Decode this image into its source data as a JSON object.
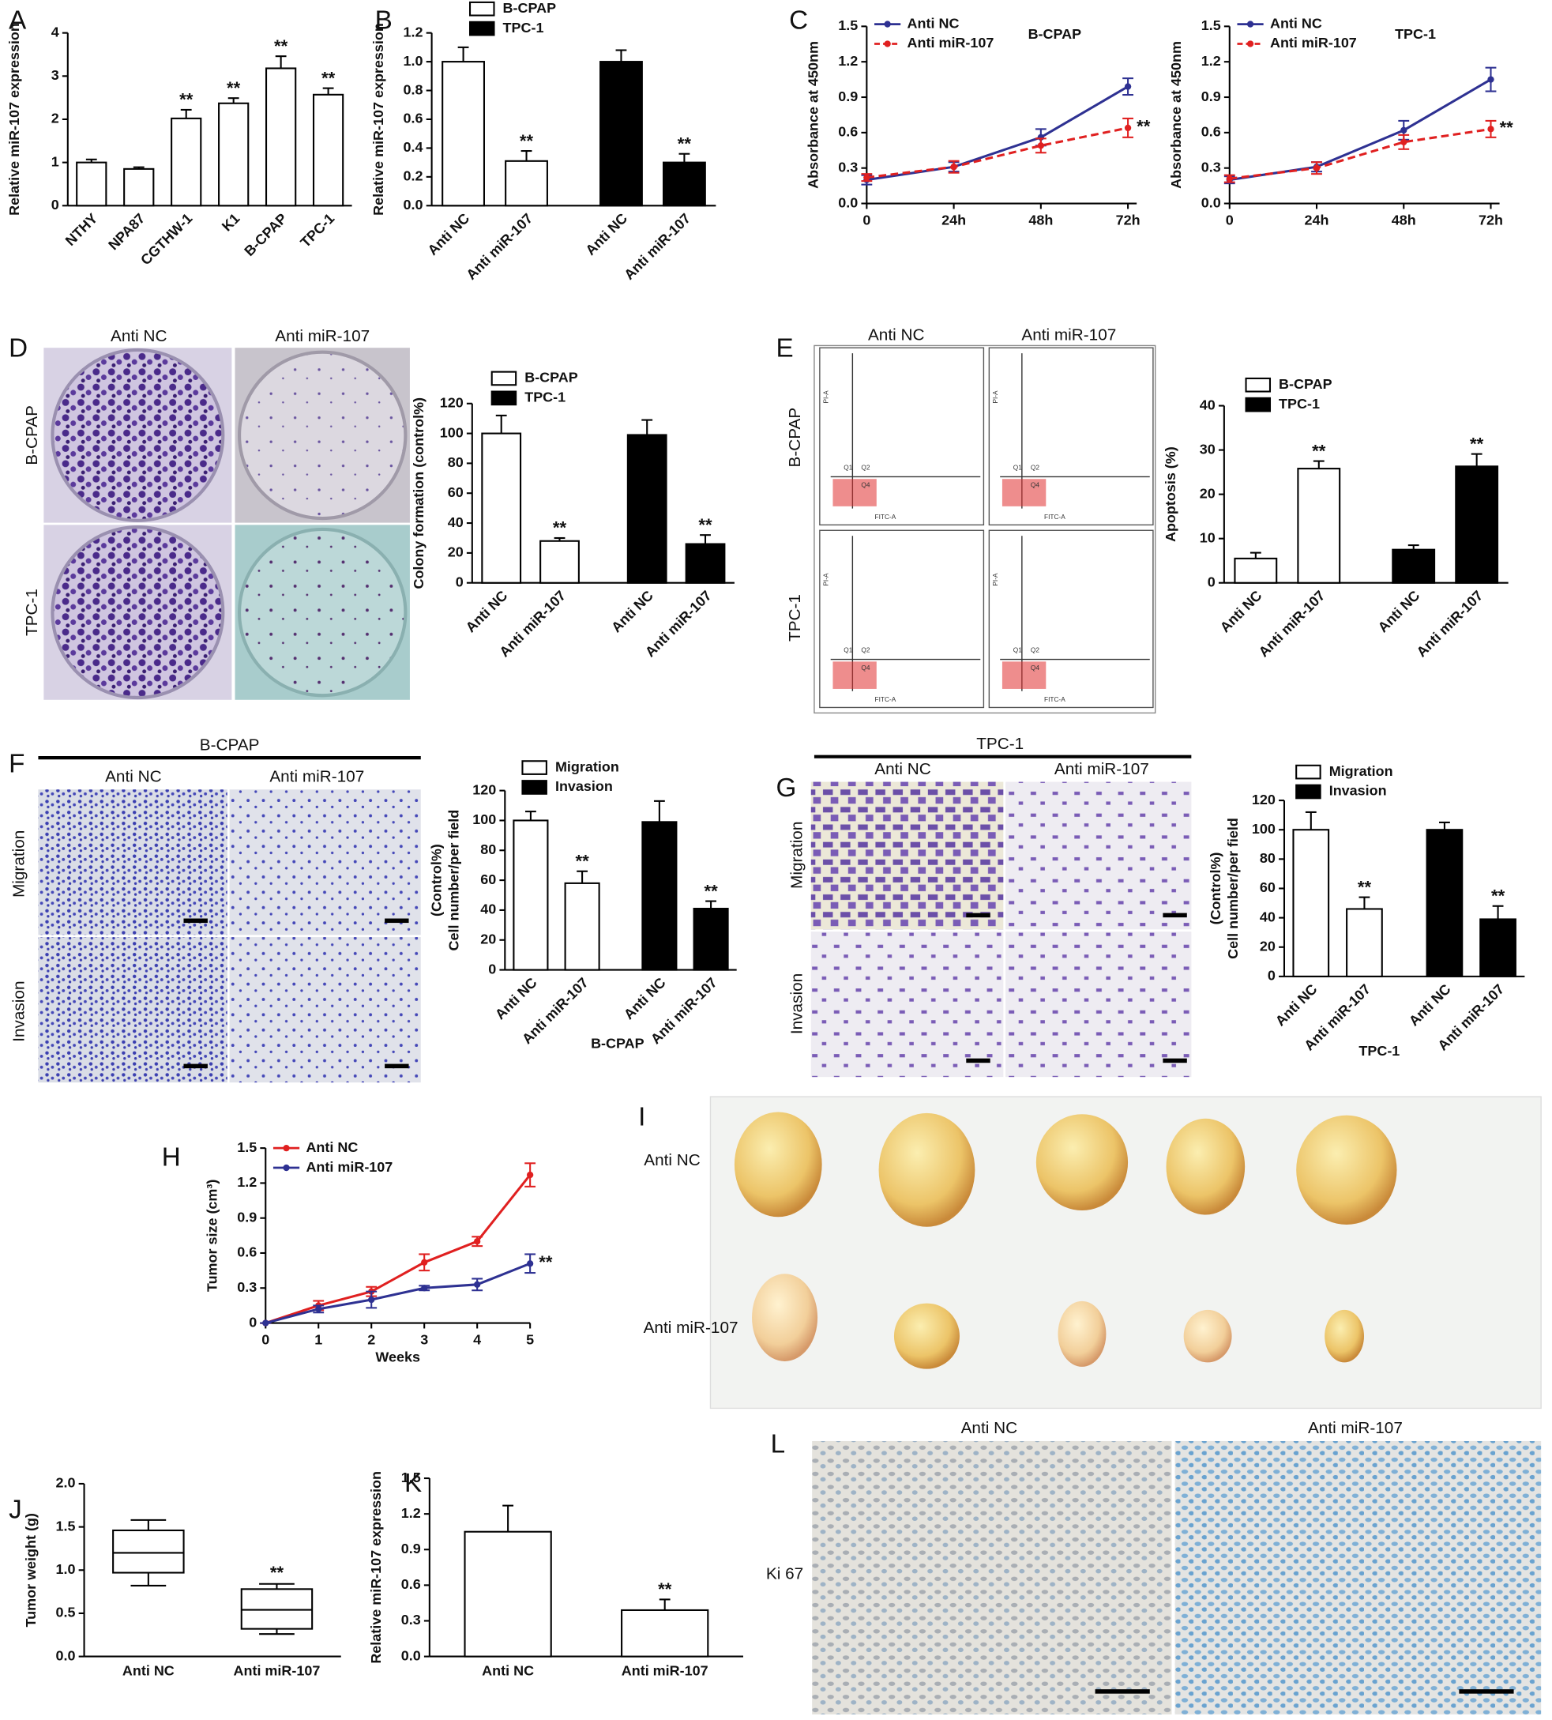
{
  "panels": [
    "A",
    "B",
    "C",
    "D",
    "E",
    "F",
    "G",
    "H",
    "I",
    "J",
    "K",
    "L"
  ],
  "images": {
    "D": {
      "columns": [
        "Anti NC",
        "Anti miR-107"
      ],
      "rows": [
        "B-CPAP",
        "TPC-1"
      ]
    },
    "E": {
      "columns": [
        "Anti NC",
        "Anti miR-107"
      ],
      "rows": [
        "B-CPAP",
        "TPC-1"
      ],
      "quadrants": [
        "Q1",
        "Q2",
        "Q4"
      ],
      "x_label": "FITC-A",
      "y_label": "PI-A"
    },
    "F": {
      "title": "B-CPAP",
      "columns": [
        "Anti NC",
        "Anti miR-107"
      ],
      "rows": [
        "Migration",
        "Invasion"
      ]
    },
    "G": {
      "title": "TPC-1",
      "columns": [
        "Anti NC",
        "Anti miR-107"
      ],
      "rows": [
        "Migration",
        "Invasion"
      ]
    },
    "I": {
      "rows": [
        "Anti NC",
        "Anti miR-107"
      ]
    },
    "L": {
      "columns": [
        "Anti NC",
        "Anti miR-107"
      ],
      "rows": [
        "Ki 67"
      ]
    }
  },
  "chart_data": [
    {
      "type": "bar",
      "ylabel": [
        "Relative miR-107 expression"
      ],
      "categories": [
        "NTHY",
        "NPA87",
        "CGTHW-1",
        "K1",
        "B-CPAP",
        "TPC-1"
      ],
      "values": [
        1.0,
        0.85,
        2.02,
        2.37,
        3.18,
        2.57
      ],
      "errors": [
        0.07,
        0.04,
        0.2,
        0.12,
        0.28,
        0.15
      ],
      "color": "#ffffff",
      "annotations": [
        null,
        null,
        "**",
        "**",
        "**",
        "**"
      ],
      "ylim": [
        0,
        4
      ],
      "yticks": [
        0,
        1,
        2,
        3,
        4
      ]
    },
    {
      "type": "bar",
      "ylabel": [
        "Relative miR-107 expression"
      ],
      "categories": [
        "Anti NC",
        "Anti miR-107",
        "Anti NC",
        "Anti miR-107"
      ],
      "series": [
        {
          "name": "B-CPAP",
          "color": "#ffffff",
          "values": [
            1.0,
            0.31,
            null,
            null
          ],
          "errors": [
            0.1,
            0.07,
            null,
            null
          ]
        },
        {
          "name": "TPC-1",
          "color": "#000000",
          "values": [
            null,
            null,
            1.0,
            0.3
          ],
          "errors": [
            null,
            null,
            0.08,
            0.06
          ]
        }
      ],
      "annotations": [
        null,
        "**",
        null,
        "**"
      ],
      "ylim": [
        0,
        1.2
      ],
      "yticks": [
        {
          "value": 0,
          "label": "0.0"
        },
        0.2,
        0.4,
        0.6,
        0.8,
        {
          "value": 1,
          "label": "1.0"
        },
        1.2
      ]
    },
    {
      "type": "line",
      "subtitle": "B-CPAP",
      "ylabel": [
        "Absorbance at 450nm"
      ],
      "categories": [
        "0",
        "24h",
        "48h",
        "72h"
      ],
      "series": [
        {
          "name": "Anti NC",
          "color": "#2e3192",
          "style": "solid",
          "values": [
            0.2,
            0.31,
            0.56,
            0.99
          ],
          "errors": [
            0.04,
            0.04,
            0.07,
            0.07
          ]
        },
        {
          "name": "Anti miR-107",
          "color": "#e02020",
          "style": "dashed",
          "values": [
            0.22,
            0.31,
            0.49,
            0.64
          ],
          "errors": [
            0.03,
            0.05,
            0.06,
            0.08
          ]
        }
      ],
      "annotation": "**",
      "ylim": [
        0,
        1.5
      ],
      "yticks": [
        {
          "value": 0,
          "label": "0.0"
        },
        0.3,
        0.6,
        0.9,
        1.2,
        1.5
      ]
    },
    {
      "type": "line",
      "subtitle": "TPC-1",
      "ylabel": [
        "Absorbance at 450nm"
      ],
      "categories": [
        "0",
        "24h",
        "48h",
        "72h"
      ],
      "series": [
        {
          "name": "Anti NC",
          "color": "#2e3192",
          "style": "solid",
          "values": [
            0.2,
            0.31,
            0.62,
            1.05
          ],
          "errors": [
            0.03,
            0.04,
            0.08,
            0.1
          ]
        },
        {
          "name": "Anti miR-107",
          "color": "#e02020",
          "style": "dashed",
          "values": [
            0.21,
            0.3,
            0.52,
            0.63
          ],
          "errors": [
            0.03,
            0.05,
            0.06,
            0.07
          ]
        }
      ],
      "annotation": "**",
      "ylim": [
        0,
        1.5
      ],
      "yticks": [
        {
          "value": 0,
          "label": "0.0"
        },
        0.3,
        0.6,
        0.9,
        1.2,
        1.5
      ]
    },
    {
      "type": "bar",
      "ylabel": [
        "Colony formation (control%)"
      ],
      "categories": [
        "Anti NC",
        "Anti miR-107",
        "Anti NC",
        "Anti miR-107"
      ],
      "series": [
        {
          "name": "B-CPAP",
          "color": "#ffffff",
          "values": [
            100,
            28,
            null,
            null
          ],
          "errors": [
            12,
            2,
            null,
            null
          ]
        },
        {
          "name": "TPC-1",
          "color": "#000000",
          "values": [
            null,
            null,
            99,
            26
          ],
          "errors": [
            null,
            null,
            10,
            6
          ]
        }
      ],
      "annotations": [
        null,
        "**",
        null,
        "**"
      ],
      "ylim": [
        0,
        120
      ],
      "yticks": [
        0,
        20,
        40,
        60,
        80,
        100,
        120
      ]
    },
    {
      "type": "bar",
      "ylabel": [
        "Apoptosis (%)"
      ],
      "categories": [
        "Anti NC",
        "Anti miR-107",
        "Anti NC",
        "Anti miR-107"
      ],
      "series": [
        {
          "name": "B-CPAP",
          "color": "#ffffff",
          "values": [
            5.5,
            25.8,
            null,
            null
          ],
          "errors": [
            1.3,
            1.7,
            null,
            null
          ]
        },
        {
          "name": "TPC-1",
          "color": "#000000",
          "values": [
            null,
            null,
            7.5,
            26.3
          ],
          "errors": [
            null,
            null,
            1,
            2.8
          ]
        }
      ],
      "annotations": [
        null,
        "**",
        null,
        "**"
      ],
      "ylim": [
        0,
        40
      ],
      "yticks": [
        0,
        10,
        20,
        30,
        40
      ]
    },
    {
      "type": "bar",
      "xlabel": "B-CPAP",
      "ylabel": [
        "Cell number/per field",
        "(Control%)"
      ],
      "categories": [
        "Anti NC",
        "Anti miR-107",
        "Anti NC",
        "Anti miR-107"
      ],
      "series": [
        {
          "name": "Migration",
          "color": "#ffffff",
          "values": [
            100,
            58,
            null,
            null
          ],
          "errors": [
            6,
            8,
            null,
            null
          ]
        },
        {
          "name": "Invasion",
          "color": "#000000",
          "values": [
            null,
            null,
            99,
            41
          ],
          "errors": [
            null,
            null,
            14,
            5
          ]
        }
      ],
      "annotations": [
        null,
        "**",
        null,
        "**"
      ],
      "ylim": [
        0,
        120
      ],
      "yticks": [
        0,
        20,
        40,
        60,
        80,
        100,
        120
      ]
    },
    {
      "type": "bar",
      "xlabel": "TPC-1",
      "ylabel": [
        "Cell number/per field",
        "(Control%)"
      ],
      "categories": [
        "Anti NC",
        "Anti miR-107",
        "Anti NC",
        "Anti miR-107"
      ],
      "series": [
        {
          "name": "Migration",
          "color": "#ffffff",
          "values": [
            100,
            46,
            null,
            null
          ],
          "errors": [
            12,
            8,
            null,
            null
          ]
        },
        {
          "name": "Invasion",
          "color": "#000000",
          "values": [
            null,
            null,
            100,
            39
          ],
          "errors": [
            null,
            null,
            5,
            9
          ]
        }
      ],
      "annotations": [
        null,
        "**",
        null,
        "**"
      ],
      "ylim": [
        0,
        120
      ],
      "yticks": [
        0,
        20,
        40,
        60,
        80,
        100,
        120
      ]
    },
    {
      "type": "line",
      "xlabel": "Weeks",
      "ylabel": [
        "Tumor size (cm³)"
      ],
      "x": [
        0,
        1,
        2,
        3,
        4,
        5
      ],
      "series": [
        {
          "name": "Anti NC",
          "color": "#e02020",
          "style": "solid",
          "values": [
            0,
            0.15,
            0.27,
            0.52,
            0.7,
            1.27
          ],
          "errors": [
            0,
            0.04,
            0.04,
            0.07,
            0.04,
            0.1
          ]
        },
        {
          "name": "Anti miR-107",
          "color": "#2e3192",
          "style": "solid",
          "values": [
            0,
            0.12,
            0.2,
            0.3,
            0.33,
            0.51
          ],
          "errors": [
            0,
            0.03,
            0.07,
            0.02,
            0.05,
            0.08
          ]
        }
      ],
      "annotation": "**",
      "xlim": [
        0,
        5
      ],
      "xticks": [
        0,
        1,
        2,
        3,
        4,
        5
      ],
      "ylim": [
        0,
        1.5
      ],
      "yticks": [
        0,
        0.3,
        0.6,
        0.9,
        1.2,
        1.5
      ]
    },
    {
      "type": "box",
      "ylabel": [
        "Tumor weight (g)"
      ],
      "categories": [
        "Anti NC",
        "Anti miR-107"
      ],
      "boxes": [
        {
          "min": 0.82,
          "q1": 0.97,
          "median": 1.2,
          "q3": 1.46,
          "max": 1.58
        },
        {
          "min": 0.26,
          "q1": 0.32,
          "median": 0.54,
          "q3": 0.78,
          "max": 0.84
        }
      ],
      "annotations": [
        null,
        "**"
      ],
      "ylim": [
        0,
        2
      ],
      "yticks": [
        {
          "value": 0,
          "label": "0.0"
        },
        0.5,
        {
          "value": 1,
          "label": "1.0"
        },
        1.5,
        {
          "value": 2,
          "label": "2.0"
        }
      ]
    },
    {
      "type": "bar",
      "ylabel": [
        "Relative miR-107 expression"
      ],
      "categories": [
        "Anti NC",
        "Anti miR-107"
      ],
      "values": [
        1.05,
        0.39
      ],
      "errors": [
        0.22,
        0.09
      ],
      "color": "#ffffff",
      "annotations": [
        null,
        "**"
      ],
      "ylim": [
        0,
        1.5
      ],
      "yticks": [
        {
          "value": 0,
          "label": "0.0"
        },
        0.3,
        0.6,
        0.9,
        1.2,
        1.5
      ]
    }
  ]
}
